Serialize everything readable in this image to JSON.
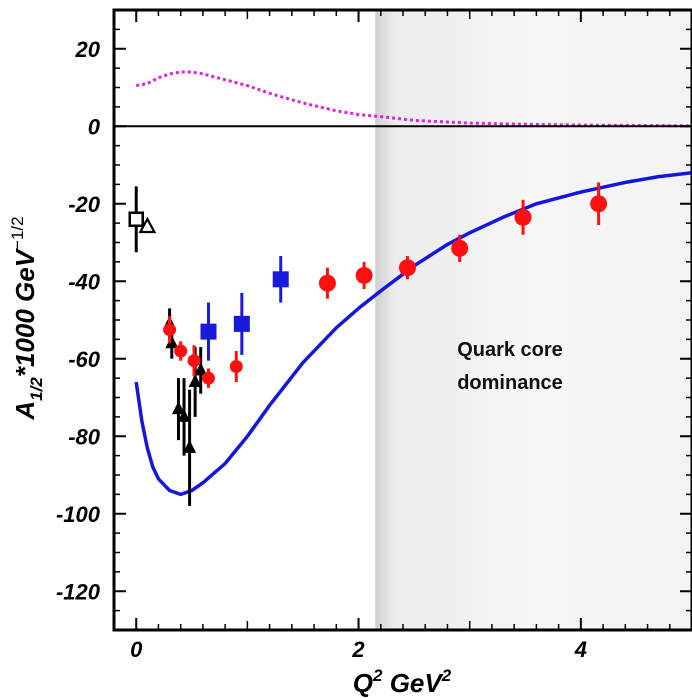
{
  "chart_data": {
    "type": "scatter",
    "xlabel": {
      "main": "Q",
      "sup1": "2",
      "unit": " GeV",
      "sup2": "2"
    },
    "ylabel": {
      "main": "A",
      "sub": "1/2",
      "rest": "*1000 GeV",
      "sup": "−1/2"
    },
    "annotation": [
      "Quark core",
      "dominance"
    ],
    "xlim": [
      -0.2,
      5.0
    ],
    "ylim": [
      -130,
      30
    ],
    "x_ticks": [
      0,
      2,
      4
    ],
    "y_ticks": [
      20,
      0,
      -20,
      -40,
      -60,
      -80,
      -100,
      -120
    ],
    "shaded_region_x": [
      2.15,
      5.0
    ],
    "series": [
      {
        "marker": "open-square",
        "color": "#000000",
        "points": [
          {
            "x": 0.0,
            "y": -24,
            "err": 8.5
          }
        ]
      },
      {
        "marker": "open-triangle",
        "color": "#000000",
        "points": [
          {
            "x": 0.1,
            "y": -26,
            "err": 0
          }
        ]
      },
      {
        "marker": "triangle",
        "color": "#000000",
        "points": [
          {
            "x": 0.3,
            "y": -51,
            "err": 4
          },
          {
            "x": 0.32,
            "y": -56,
            "err": 4
          },
          {
            "x": 0.38,
            "y": -73,
            "err": 8
          },
          {
            "x": 0.43,
            "y": -75,
            "err": 10
          },
          {
            "x": 0.48,
            "y": -83,
            "err": 15
          },
          {
            "x": 0.53,
            "y": -66,
            "err": 9
          },
          {
            "x": 0.58,
            "y": -63,
            "err": 6
          }
        ]
      },
      {
        "marker": "square",
        "color": "#1a1adb",
        "points": [
          {
            "x": 0.65,
            "y": -53,
            "err": 7.5
          },
          {
            "x": 0.95,
            "y": -51,
            "err": 8
          },
          {
            "x": 1.3,
            "y": -39.5,
            "err": 6
          }
        ]
      },
      {
        "marker": "circle-small",
        "color": "#ff1010",
        "points": [
          {
            "x": 0.3,
            "y": -52.5,
            "err": 3.5
          },
          {
            "x": 0.4,
            "y": -58,
            "err": 2.5
          },
          {
            "x": 0.52,
            "y": -60.5,
            "err": 4
          },
          {
            "x": 0.65,
            "y": -65,
            "err": 2.5
          },
          {
            "x": 0.9,
            "y": -62,
            "err": 4
          }
        ]
      },
      {
        "marker": "circle",
        "color": "#ff1010",
        "points": [
          {
            "x": 1.72,
            "y": -40.5,
            "err": 4
          },
          {
            "x": 2.05,
            "y": -38.5,
            "err": 3.5
          },
          {
            "x": 2.44,
            "y": -36.5,
            "err": 3
          },
          {
            "x": 2.91,
            "y": -31.5,
            "err": 3.5
          },
          {
            "x": 3.48,
            "y": -23.5,
            "err": 4.5
          },
          {
            "x": 4.16,
            "y": -20,
            "err": 5.5
          }
        ]
      }
    ],
    "curves": [
      {
        "style": "solid",
        "color": "#1515e0",
        "x": [
          0.0,
          0.05,
          0.1,
          0.15,
          0.2,
          0.3,
          0.4,
          0.5,
          0.6,
          0.8,
          1.0,
          1.2,
          1.5,
          1.8,
          2.0,
          2.2,
          2.5,
          2.8,
          3.0,
          3.3,
          3.6,
          4.0,
          4.4,
          4.7,
          5.0
        ],
        "y": [
          -66,
          -76,
          -83,
          -88,
          -91,
          -94,
          -95,
          -94,
          -92,
          -87,
          -80,
          -72,
          -61,
          -52,
          -47,
          -42.5,
          -36,
          -30.5,
          -27.5,
          -23.5,
          -20,
          -17,
          -14.5,
          -13,
          -12
        ]
      },
      {
        "style": "dotted",
        "color": "#e020e0",
        "x": [
          0.0,
          0.1,
          0.2,
          0.3,
          0.4,
          0.5,
          0.6,
          0.8,
          1.0,
          1.2,
          1.5,
          1.8,
          2.0,
          2.2,
          2.5,
          3.0,
          3.5,
          4.0,
          4.5,
          5.0
        ],
        "y": [
          10.5,
          11,
          12.5,
          13.5,
          14,
          14,
          13.5,
          12,
          10.5,
          8.5,
          6,
          4,
          3,
          2.5,
          1.5,
          0.8,
          0.5,
          0.3,
          0.2,
          0.1
        ]
      }
    ]
  }
}
